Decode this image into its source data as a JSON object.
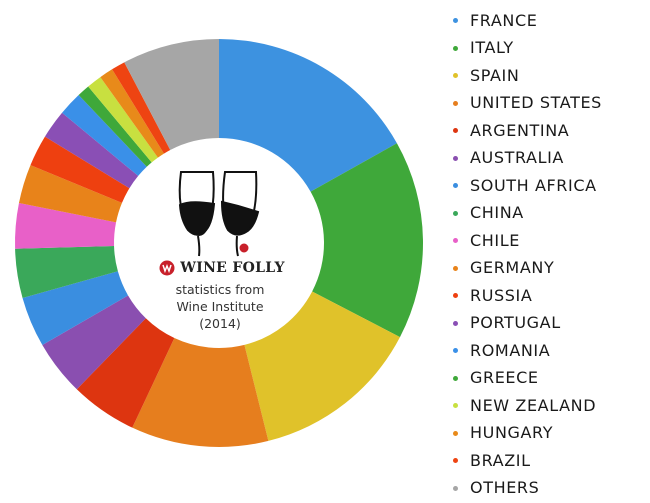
{
  "chart_data": {
    "type": "pie",
    "donut": true,
    "unit": "estimated share of total (%)",
    "categories": [
      "FRANCE",
      "ITALY",
      "SPAIN",
      "UNITED STATES",
      "ARGENTINA",
      "AUSTRALIA",
      "SOUTH AFRICA",
      "CHINA",
      "CHILE",
      "GERMANY",
      "RUSSIA",
      "PORTUGAL",
      "ROMANIA",
      "GREECE",
      "NEW ZEALAND",
      "HUNGARY",
      "BRAZIL",
      "OTHERS"
    ],
    "values": [
      16.9,
      15.8,
      13.5,
      10.9,
      5.3,
      4.4,
      4.0,
      3.9,
      3.6,
      3.1,
      2.5,
      2.3,
      1.9,
      1.0,
      1.2,
      1.1,
      1.1,
      7.7
    ],
    "colors": [
      "#3d92e0",
      "#3fa83a",
      "#e0c22a",
      "#e67e1e",
      "#dd3510",
      "#8a4fb0",
      "#3a8ee0",
      "#3aa85a",
      "#e860c8",
      "#e8831a",
      "#ee4010",
      "#8a4fb5",
      "#3a90e8",
      "#3fa83a",
      "#c8e040",
      "#e88a1a",
      "#ee4412",
      "#a6a6a6"
    ],
    "start": "top",
    "direction": "clockwise",
    "legend_position": "right"
  },
  "center": {
    "brand": "WINE FOLLY",
    "line1": "statistics from",
    "line2": "Wine Institute",
    "line3": "(2014)"
  }
}
